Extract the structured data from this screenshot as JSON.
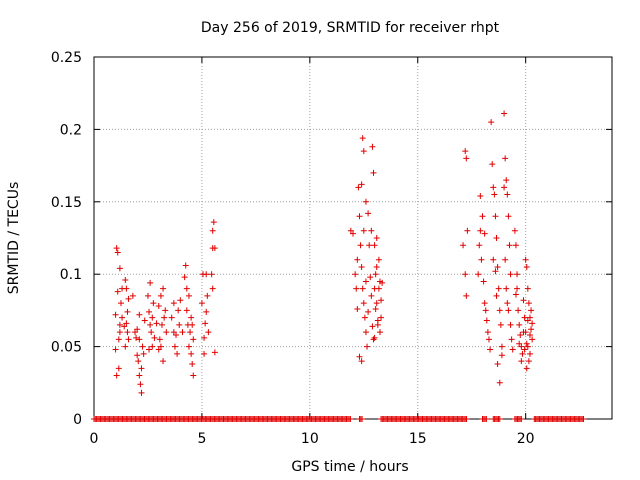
{
  "chart_data": {
    "type": "scatter",
    "title": "Day 256 of 2019, SRMTID for receiver rhpt",
    "xlabel": "GPS time / hours",
    "ylabel": "SRMTID / TECUs",
    "xlim": [
      0,
      24
    ],
    "ylim": [
      0,
      0.25
    ],
    "xticks": [
      0,
      5,
      10,
      15,
      20
    ],
    "yticks": [
      0,
      0.05,
      0.1,
      0.15,
      0.2,
      0.25
    ],
    "ytick_labels": [
      "0",
      "0.05",
      "0.1",
      "0.15",
      "0.2",
      "0.25"
    ],
    "grid": true,
    "marker": "+",
    "color": "#e00000",
    "series": [
      {
        "name": "SRMTID",
        "points": [
          [
            1.0,
            0.072
          ],
          [
            1.05,
            0.118
          ],
          [
            1.1,
            0.088
          ],
          [
            1.15,
            0.055
          ],
          [
            1.2,
            0.065
          ],
          [
            1.1,
            0.115
          ],
          [
            1.2,
            0.104
          ],
          [
            1.0,
            0.048
          ],
          [
            1.25,
            0.08
          ],
          [
            1.3,
            0.07
          ],
          [
            1.15,
            0.035
          ],
          [
            1.05,
            0.03
          ],
          [
            1.2,
            0.06
          ],
          [
            1.3,
            0.09
          ],
          [
            1.4,
            0.064
          ],
          [
            1.5,
            0.09
          ],
          [
            1.55,
            0.074
          ],
          [
            1.6,
            0.055
          ],
          [
            1.45,
            0.05
          ],
          [
            1.5,
            0.066
          ],
          [
            1.6,
            0.083
          ],
          [
            1.45,
            0.096
          ],
          [
            1.55,
            0.06
          ],
          [
            1.8,
            0.085
          ],
          [
            1.9,
            0.06
          ],
          [
            2.0,
            0.044
          ],
          [
            2.1,
            0.03
          ],
          [
            2.05,
            0.04
          ],
          [
            2.15,
            0.024
          ],
          [
            2.2,
            0.018
          ],
          [
            2.1,
            0.072
          ],
          [
            2.0,
            0.062
          ],
          [
            2.25,
            0.05
          ],
          [
            1.95,
            0.056
          ],
          [
            2.2,
            0.035
          ],
          [
            2.3,
            0.045
          ],
          [
            2.35,
            0.068
          ],
          [
            2.1,
            0.055
          ],
          [
            2.5,
            0.085
          ],
          [
            2.55,
            0.074
          ],
          [
            2.6,
            0.094
          ],
          [
            2.65,
            0.06
          ],
          [
            2.7,
            0.05
          ],
          [
            2.6,
            0.065
          ],
          [
            2.75,
            0.08
          ],
          [
            2.55,
            0.048
          ],
          [
            2.8,
            0.056
          ],
          [
            2.7,
            0.07
          ],
          [
            2.9,
            0.066
          ],
          [
            3.0,
            0.048
          ],
          [
            3.05,
            0.055
          ],
          [
            3.1,
            0.085
          ],
          [
            3.15,
            0.065
          ],
          [
            3.2,
            0.04
          ],
          [
            3.25,
            0.07
          ],
          [
            3.3,
            0.075
          ],
          [
            3.1,
            0.05
          ],
          [
            3.0,
            0.078
          ],
          [
            3.35,
            0.06
          ],
          [
            3.2,
            0.09
          ],
          [
            3.6,
            0.07
          ],
          [
            3.7,
            0.06
          ],
          [
            3.75,
            0.05
          ],
          [
            3.8,
            0.058
          ],
          [
            3.9,
            0.075
          ],
          [
            4.0,
            0.082
          ],
          [
            3.85,
            0.045
          ],
          [
            3.95,
            0.065
          ],
          [
            3.7,
            0.08
          ],
          [
            4.1,
            0.06
          ],
          [
            4.2,
            0.098
          ],
          [
            4.25,
            0.106
          ],
          [
            4.3,
            0.075
          ],
          [
            4.35,
            0.065
          ],
          [
            4.4,
            0.05
          ],
          [
            4.45,
            0.06
          ],
          [
            4.5,
            0.045
          ],
          [
            4.55,
            0.038
          ],
          [
            4.6,
            0.03
          ],
          [
            4.5,
            0.07
          ],
          [
            4.4,
            0.085
          ],
          [
            4.6,
            0.055
          ],
          [
            4.3,
            0.09
          ],
          [
            4.55,
            0.065
          ],
          [
            5.0,
            0.08
          ],
          [
            5.1,
            0.056
          ],
          [
            5.15,
            0.066
          ],
          [
            5.2,
            0.1
          ],
          [
            5.25,
            0.085
          ],
          [
            5.1,
            0.045
          ],
          [
            5.2,
            0.074
          ],
          [
            5.05,
            0.1
          ],
          [
            5.3,
            0.06
          ],
          [
            5.5,
            0.13
          ],
          [
            5.55,
            0.136
          ],
          [
            5.6,
            0.118
          ],
          [
            5.5,
            0.118
          ],
          [
            5.45,
            0.1
          ],
          [
            5.6,
            0.046
          ],
          [
            5.5,
            0.09
          ],
          [
            11.9,
            0.13
          ],
          [
            12.0,
            0.128
          ],
          [
            12.1,
            0.1
          ],
          [
            12.15,
            0.09
          ],
          [
            12.2,
            0.076
          ],
          [
            12.25,
            0.16
          ],
          [
            12.3,
            0.14
          ],
          [
            12.35,
            0.12
          ],
          [
            12.4,
            0.105
          ],
          [
            12.45,
            0.09
          ],
          [
            12.5,
            0.08
          ],
          [
            12.55,
            0.07
          ],
          [
            12.6,
            0.06
          ],
          [
            12.65,
            0.05
          ],
          [
            12.3,
            0.043
          ],
          [
            12.4,
            0.04
          ],
          [
            12.45,
            0.194
          ],
          [
            12.5,
            0.185
          ],
          [
            12.6,
            0.15
          ],
          [
            12.7,
            0.142
          ],
          [
            12.75,
            0.12
          ],
          [
            12.8,
            0.098
          ],
          [
            12.85,
            0.085
          ],
          [
            12.9,
            0.064
          ],
          [
            12.95,
            0.055
          ],
          [
            12.4,
            0.162
          ],
          [
            12.6,
            0.095
          ],
          [
            12.7,
            0.074
          ],
          [
            12.2,
            0.11
          ],
          [
            12.5,
            0.13
          ],
          [
            13.0,
            0.09
          ],
          [
            13.05,
            0.1
          ],
          [
            13.1,
            0.08
          ],
          [
            13.15,
            0.068
          ],
          [
            13.2,
            0.09
          ],
          [
            13.25,
            0.095
          ],
          [
            13.3,
            0.082
          ],
          [
            13.0,
            0.12
          ],
          [
            13.1,
            0.125
          ],
          [
            13.2,
            0.11
          ],
          [
            12.9,
            0.188
          ],
          [
            12.95,
            0.17
          ],
          [
            13.05,
            0.076
          ],
          [
            13.15,
            0.065
          ],
          [
            13.3,
            0.07
          ],
          [
            13.25,
            0.06
          ],
          [
            13.35,
            0.094
          ],
          [
            13.0,
            0.056
          ],
          [
            12.85,
            0.13
          ],
          [
            13.1,
            0.105
          ],
          [
            17.2,
            0.185
          ],
          [
            17.25,
            0.18
          ],
          [
            17.3,
            0.13
          ],
          [
            17.2,
            0.1
          ],
          [
            17.25,
            0.085
          ],
          [
            17.1,
            0.12
          ],
          [
            17.8,
            0.1
          ],
          [
            17.85,
            0.12
          ],
          [
            17.9,
            0.154
          ],
          [
            18.0,
            0.14
          ],
          [
            18.05,
            0.095
          ],
          [
            18.1,
            0.08
          ],
          [
            18.15,
            0.075
          ],
          [
            18.2,
            0.068
          ],
          [
            18.25,
            0.06
          ],
          [
            17.95,
            0.11
          ],
          [
            18.3,
            0.055
          ],
          [
            18.35,
            0.048
          ],
          [
            18.1,
            0.128
          ],
          [
            17.9,
            0.13
          ],
          [
            18.4,
            0.205
          ],
          [
            18.45,
            0.176
          ],
          [
            18.5,
            0.16
          ],
          [
            18.55,
            0.155
          ],
          [
            18.6,
            0.14
          ],
          [
            18.65,
            0.125
          ],
          [
            18.7,
            0.105
          ],
          [
            18.75,
            0.09
          ],
          [
            18.8,
            0.075
          ],
          [
            18.85,
            0.065
          ],
          [
            18.9,
            0.05
          ],
          [
            18.7,
            0.038
          ],
          [
            18.8,
            0.025
          ],
          [
            18.9,
            0.044
          ],
          [
            18.6,
            0.102
          ],
          [
            18.5,
            0.11
          ],
          [
            18.65,
            0.085
          ],
          [
            19.0,
            0.211
          ],
          [
            19.05,
            0.18
          ],
          [
            19.1,
            0.165
          ],
          [
            19.15,
            0.155
          ],
          [
            19.2,
            0.14
          ],
          [
            19.25,
            0.12
          ],
          [
            19.3,
            0.1
          ],
          [
            19.0,
            0.16
          ],
          [
            19.1,
            0.09
          ],
          [
            19.2,
            0.075
          ],
          [
            19.3,
            0.065
          ],
          [
            19.35,
            0.055
          ],
          [
            19.4,
            0.048
          ],
          [
            19.15,
            0.08
          ],
          [
            19.05,
            0.11
          ],
          [
            19.5,
            0.13
          ],
          [
            19.55,
            0.12
          ],
          [
            19.6,
            0.09
          ],
          [
            19.65,
            0.075
          ],
          [
            19.7,
            0.065
          ],
          [
            19.75,
            0.058
          ],
          [
            19.8,
            0.05
          ],
          [
            19.85,
            0.045
          ],
          [
            19.9,
            0.06
          ],
          [
            19.95,
            0.07
          ],
          [
            19.6,
            0.1
          ],
          [
            19.7,
            0.052
          ],
          [
            19.8,
            0.04
          ],
          [
            19.55,
            0.086
          ],
          [
            19.9,
            0.082
          ],
          [
            20.0,
            0.11
          ],
          [
            20.05,
            0.105
          ],
          [
            20.1,
            0.09
          ],
          [
            20.15,
            0.08
          ],
          [
            20.2,
            0.07
          ],
          [
            20.25,
            0.062
          ],
          [
            20.3,
            0.055
          ],
          [
            20.0,
            0.06
          ],
          [
            20.1,
            0.05
          ],
          [
            20.2,
            0.045
          ],
          [
            20.15,
            0.04
          ],
          [
            20.05,
            0.035
          ],
          [
            20.25,
            0.075
          ],
          [
            20.3,
            0.066
          ],
          [
            20.1,
            0.068
          ],
          [
            20.2,
            0.058
          ],
          [
            19.95,
            0.048
          ],
          [
            20.05,
            0.052
          ]
        ]
      }
    ],
    "zero_segments": [
      [
        0.0,
        11.9
      ],
      [
        12.3,
        12.45
      ],
      [
        13.3,
        17.3
      ],
      [
        18.0,
        18.2
      ],
      [
        18.5,
        18.8
      ],
      [
        19.5,
        19.8
      ],
      [
        20.4,
        22.7
      ]
    ]
  }
}
